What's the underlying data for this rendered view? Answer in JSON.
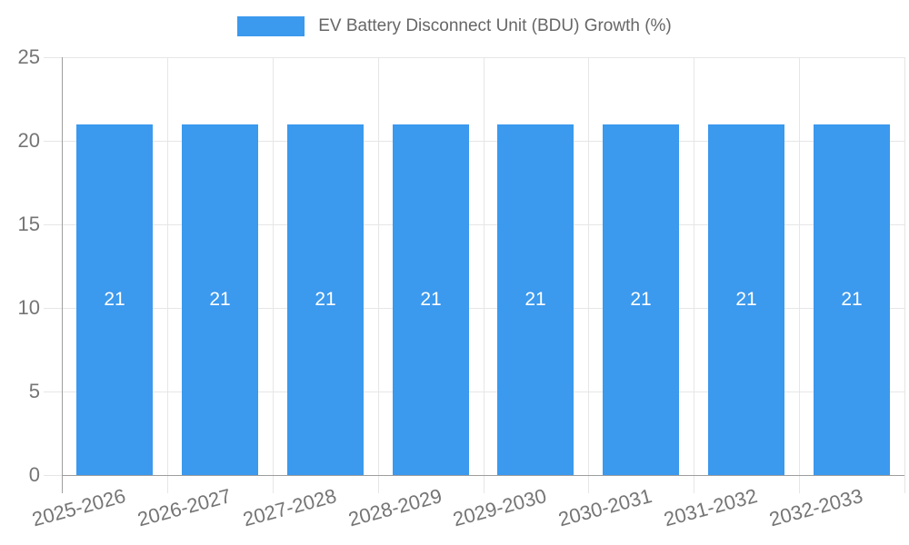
{
  "chart_data": {
    "type": "bar",
    "title": "EV Battery Disconnect Unit (BDU) Growth (%)",
    "categories": [
      "2025-2026",
      "2026-2027",
      "2027-2028",
      "2028-2029",
      "2029-2030",
      "2030-2031",
      "2031-2032",
      "2032-2033"
    ],
    "values": [
      21,
      21,
      21,
      21,
      21,
      21,
      21,
      21
    ],
    "xlabel": "",
    "ylabel": "",
    "ylim": [
      0,
      25
    ],
    "yticks": [
      0,
      5,
      10,
      15,
      20,
      25
    ],
    "grid": true,
    "legend_position": "top",
    "x_label_rotation_deg": -15,
    "colors": {
      "bar": "#3B99EE",
      "grid": "#E6E6E6",
      "axis": "#9E9E9E",
      "tick_text": "#757575",
      "legend_text": "#666666",
      "bar_label": "#FFFFFF",
      "background": "#FFFFFF"
    }
  }
}
